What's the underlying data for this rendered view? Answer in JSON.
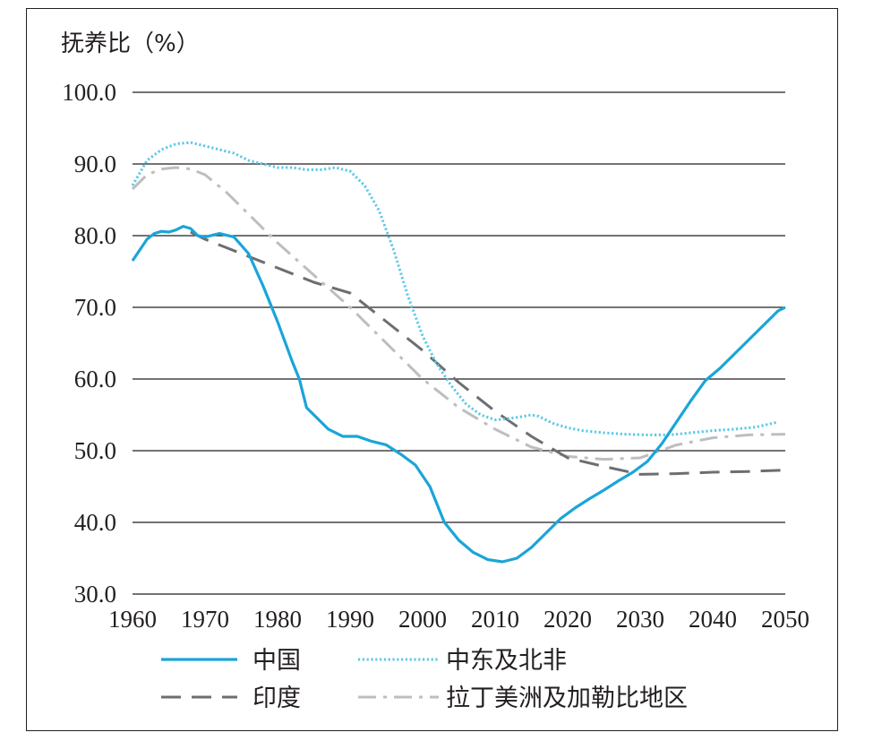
{
  "chart_data": {
    "type": "line",
    "ylabel": "抚养比（%）",
    "xlim": [
      1960,
      2050
    ],
    "ylim": [
      30,
      100
    ],
    "xticks": [
      "1960",
      "1970",
      "1980",
      "1990",
      "2000",
      "2010",
      "2020",
      "2030",
      "2040",
      "2050"
    ],
    "yticks": [
      "30.0",
      "40.0",
      "50.0",
      "60.0",
      "70.0",
      "80.0",
      "90.0",
      "100.0"
    ],
    "grid": "horizontal",
    "legend_position": "bottom",
    "series": [
      {
        "name": "中国",
        "color": "#1aa5d8",
        "style": "solid",
        "x": [
          1960,
          1961,
          1962,
          1963,
          1964,
          1965,
          1966,
          1967,
          1968,
          1969,
          1970,
          1972,
          1974,
          1976,
          1978,
          1980,
          1982,
          1983,
          1984,
          1985,
          1987,
          1989,
          1991,
          1993,
          1995,
          1997,
          1999,
          2001,
          2003,
          2005,
          2007,
          2009,
          2011,
          2013,
          2015,
          2017,
          2019,
          2021,
          2023,
          2025,
          2027,
          2029,
          2031,
          2033,
          2035,
          2037,
          2039,
          2041,
          2043,
          2045,
          2047,
          2049,
          2050
        ],
        "y": [
          76.5,
          78,
          79.5,
          80.3,
          80.6,
          80.5,
          80.8,
          81.3,
          81.0,
          80.0,
          79.8,
          80.3,
          79.8,
          77.5,
          73.0,
          68.0,
          62.5,
          60.0,
          56.0,
          55.0,
          53.0,
          52.0,
          52.0,
          51.3,
          50.8,
          49.5,
          48.0,
          45.0,
          40.0,
          37.5,
          35.8,
          34.8,
          34.5,
          35.0,
          36.5,
          38.5,
          40.5,
          42.0,
          43.3,
          44.5,
          45.8,
          47.0,
          48.5,
          51.0,
          54.0,
          57.0,
          59.8,
          61.5,
          63.5,
          65.5,
          67.5,
          69.5,
          70.0
        ]
      },
      {
        "name": "中东及北非",
        "color": "#5bc8e6",
        "style": "dotted",
        "x": [
          1960,
          1962,
          1964,
          1966,
          1968,
          1970,
          1972,
          1974,
          1976,
          1978,
          1980,
          1982,
          1984,
          1986,
          1988,
          1990,
          1992,
          1994,
          1996,
          1998,
          2000,
          2002,
          2004,
          2006,
          2008,
          2010,
          2012,
          2014,
          2015,
          2016,
          2018,
          2020,
          2022,
          2025,
          2028,
          2031,
          2034,
          2037,
          2040,
          2043,
          2046,
          2049
        ],
        "y": [
          87.0,
          90.5,
          92.0,
          92.8,
          93.0,
          92.5,
          92.0,
          91.5,
          90.5,
          90.0,
          89.5,
          89.5,
          89.2,
          89.2,
          89.5,
          89.0,
          87.0,
          83.5,
          78.0,
          71.5,
          66.0,
          62.0,
          59.0,
          56.5,
          55.0,
          54.3,
          54.5,
          54.8,
          55.0,
          54.8,
          53.8,
          53.2,
          52.8,
          52.5,
          52.3,
          52.2,
          52.2,
          52.5,
          52.8,
          53.0,
          53.3,
          54.0
        ]
      },
      {
        "name": "印度",
        "color": "#6d6e70",
        "style": "dashed",
        "x": [
          1968,
          1970,
          1975,
          1980,
          1985,
          1990,
          1995,
          2000,
          2005,
          2010,
          2015,
          2020,
          2025,
          2030,
          2035,
          2040,
          2045,
          2050
        ],
        "y": [
          80.5,
          79.5,
          77.5,
          75.5,
          73.5,
          72.0,
          68.0,
          64.0,
          59.5,
          55.5,
          52.0,
          49.0,
          47.8,
          46.7,
          46.8,
          47.0,
          47.1,
          47.3
        ]
      },
      {
        "name": "拉丁美洲及加勒比地区",
        "color": "#bcbec0",
        "style": "dashdot",
        "x": [
          1960,
          1962,
          1964,
          1966,
          1968,
          1970,
          1973,
          1976,
          1980,
          1985,
          1990,
          1995,
          2000,
          2005,
          2010,
          2015,
          2020,
          2025,
          2030,
          2035,
          2040,
          2045,
          2050
        ],
        "y": [
          86.5,
          88.5,
          89.3,
          89.5,
          89.3,
          88.5,
          86.0,
          83.0,
          79.0,
          74.5,
          70.0,
          65.0,
          60.0,
          56.0,
          53.0,
          50.5,
          49.2,
          48.8,
          49.0,
          50.8,
          51.8,
          52.2,
          52.3
        ]
      }
    ]
  }
}
